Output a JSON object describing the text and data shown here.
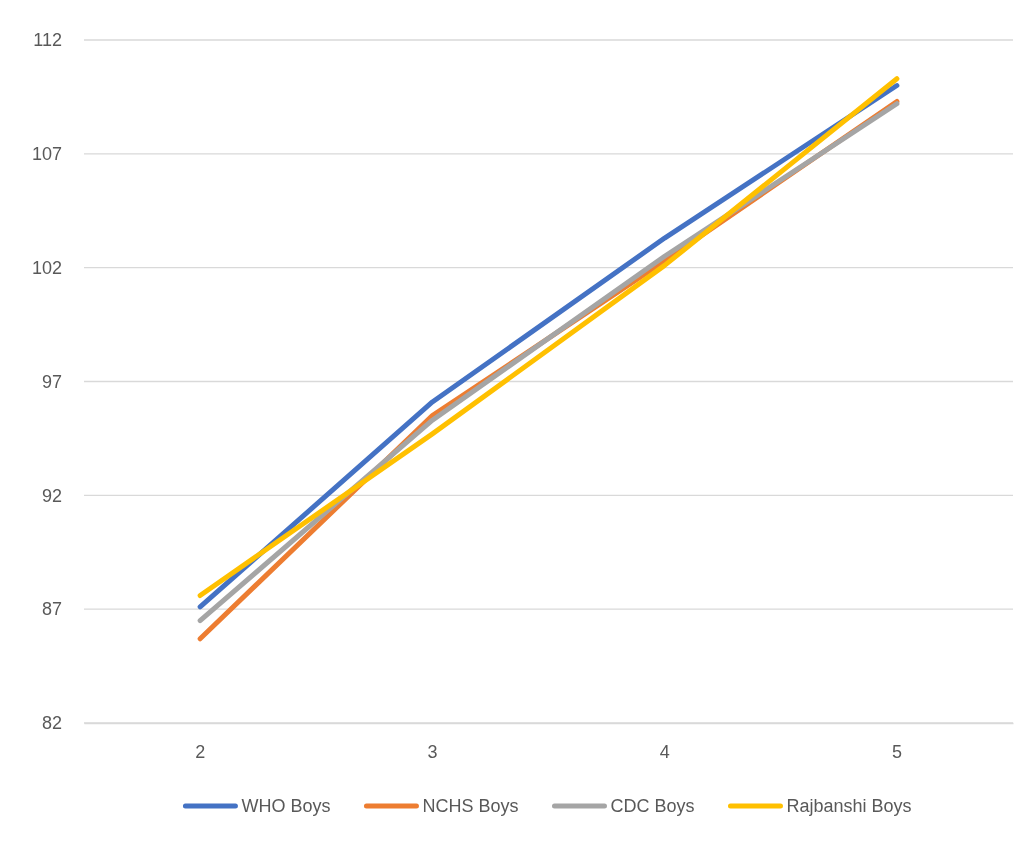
{
  "chart_data": {
    "type": "line",
    "categories": [
      "2",
      "3",
      "4",
      "5"
    ],
    "series": [
      {
        "name": "WHO Boys",
        "color": "#4472c4",
        "values": [
          87.1,
          96.1,
          103.3,
          110.0
        ]
      },
      {
        "name": "NCHS Boys",
        "color": "#ed7d31",
        "values": [
          85.7,
          95.5,
          102.3,
          109.3
        ]
      },
      {
        "name": "CDC Boys",
        "color": "#a5a5a5",
        "values": [
          86.5,
          95.3,
          102.5,
          109.2
        ]
      },
      {
        "name": "Rajbanshi Boys",
        "color": "#ffc000",
        "values": [
          87.6,
          94.7,
          102.1,
          110.3
        ]
      }
    ],
    "ylim": [
      82,
      112
    ],
    "yticks": [
      82,
      87,
      92,
      97,
      102,
      107,
      112
    ],
    "grid": "y",
    "legend": "bottom",
    "marker": "none",
    "line_style": "solid"
  }
}
